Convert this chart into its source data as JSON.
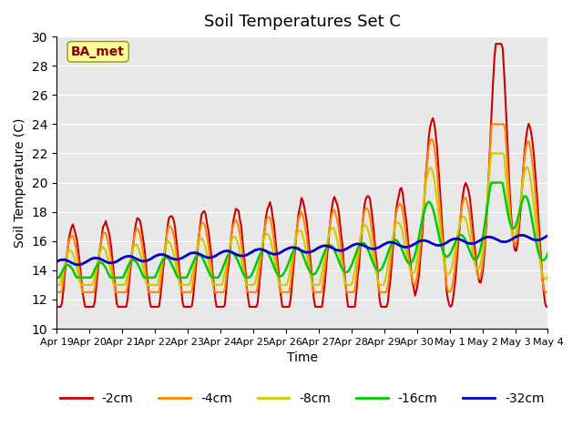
{
  "title": "Soil Temperatures Set C",
  "xlabel": "Time",
  "ylabel": "Soil Temperature (C)",
  "ylim": [
    10,
    30
  ],
  "yticks": [
    10,
    12,
    14,
    16,
    18,
    20,
    22,
    24,
    26,
    28,
    30
  ],
  "annotation": "BA_met",
  "annotation_color": "#8B0000",
  "annotation_bg": "#FFFF99",
  "bg_color": "#E8E8E8",
  "line_colors": {
    "-2cm": "#CC0000",
    "-4cm": "#FF8800",
    "-8cm": "#CCCC00",
    "-16cm": "#00CC00",
    "-32cm": "#0000CC"
  },
  "line_widths": {
    "-2cm": 1.5,
    "-4cm": 1.5,
    "-8cm": 1.5,
    "-16cm": 1.8,
    "-32cm": 2.0
  },
  "x_tick_labels": [
    "Apr 19",
    "Apr 20",
    "Apr 21",
    "Apr 22",
    "Apr 23",
    "Apr 24",
    "Apr 25",
    "Apr 26",
    "Apr 27",
    "Apr 28",
    "Apr 29",
    "Apr 30",
    "May 1",
    "May 2",
    "May 3",
    "May 4"
  ]
}
